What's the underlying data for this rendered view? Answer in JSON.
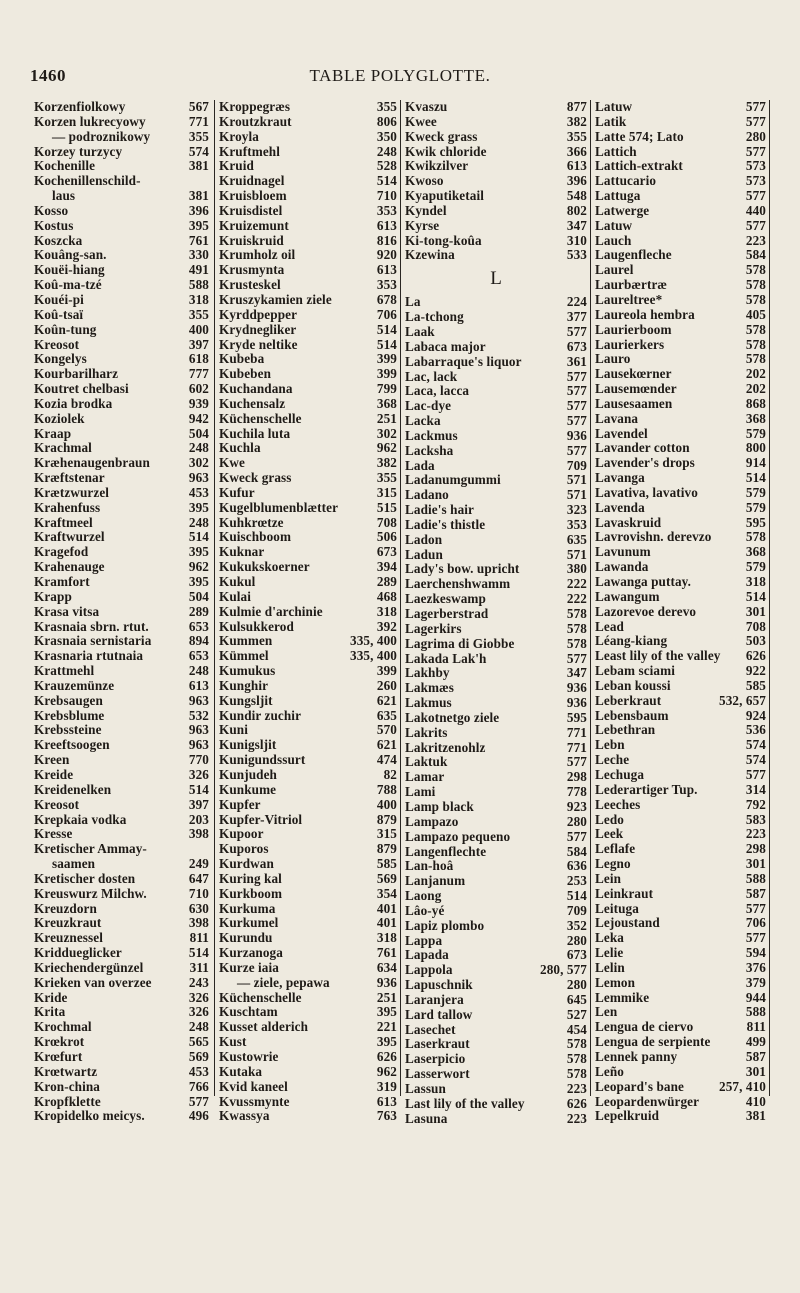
{
  "header": {
    "page_number": "1460",
    "title": "TABLE POLYGLOTTE."
  },
  "columns": [
    [
      {
        "t": "Korzenfiolkowy",
        "n": "567"
      },
      {
        "t": "Korzen lukrecyowy",
        "n": "771"
      },
      {
        "t": "— podroznikowy",
        "n": "355",
        "i": 1
      },
      {
        "t": "Korzey turzycy",
        "n": "574"
      },
      {
        "t": "Kochenille",
        "n": "381"
      },
      {
        "t": "Kochenillenschild-",
        "n": ""
      },
      {
        "t": "laus",
        "n": "381",
        "i": 1
      },
      {
        "t": "Kosso",
        "n": "396"
      },
      {
        "t": "Kostus",
        "n": "395"
      },
      {
        "t": "Koszcka",
        "n": "761"
      },
      {
        "t": "Kouâng-san.",
        "n": "330"
      },
      {
        "t": "Kouëi-hiang",
        "n": "491"
      },
      {
        "t": "Koû-ma-tzé",
        "n": "588"
      },
      {
        "t": "Kouéi-pi",
        "n": "318"
      },
      {
        "t": "Koû-tsaï",
        "n": "355"
      },
      {
        "t": "Koûn-tung",
        "n": "400"
      },
      {
        "t": "Kreosot",
        "n": "397"
      },
      {
        "t": "Kongelys",
        "n": "618"
      },
      {
        "t": "Kourbarilharz",
        "n": "777"
      },
      {
        "t": "Koutret chelbasi",
        "n": "602"
      },
      {
        "t": "Kozia brodka",
        "n": "939"
      },
      {
        "t": "Koziolek",
        "n": "942"
      },
      {
        "t": "Kraap",
        "n": "504"
      },
      {
        "t": "Krachmal",
        "n": "248"
      },
      {
        "t": "Kræhenaugenbraun",
        "n": "302"
      },
      {
        "t": "Kræftstenar",
        "n": "963"
      },
      {
        "t": "Krætzwurzel",
        "n": "453"
      },
      {
        "t": "Krahenfuss",
        "n": "395"
      },
      {
        "t": "Kraftmeel",
        "n": "248"
      },
      {
        "t": "Kraftwurzel",
        "n": "514"
      },
      {
        "t": "Kragefod",
        "n": "395"
      },
      {
        "t": "Krahenauge",
        "n": "962"
      },
      {
        "t": "Kramfort",
        "n": "395"
      },
      {
        "t": "Krapp",
        "n": "504"
      },
      {
        "t": "Krasa vitsa",
        "n": "289"
      },
      {
        "t": "Krasnaia sbrn. rtut.",
        "n": "653"
      },
      {
        "t": "Krasnaia sernistaria",
        "n": "894"
      },
      {
        "t": "Krasnaria rtutnaia",
        "n": "653"
      },
      {
        "t": "Krattmehl",
        "n": "248"
      },
      {
        "t": "Krauzemünze",
        "n": "613"
      },
      {
        "t": "Krebsaugen",
        "n": "963"
      },
      {
        "t": "Krebsblume",
        "n": "532"
      },
      {
        "t": "Krebssteine",
        "n": "963"
      },
      {
        "t": "Kreeftsoogen",
        "n": "963"
      },
      {
        "t": "Kreen",
        "n": "770"
      },
      {
        "t": "Kreide",
        "n": "326"
      },
      {
        "t": "Kreidenelken",
        "n": "514"
      },
      {
        "t": "Kreosot",
        "n": "397"
      },
      {
        "t": "Krepkaia vodka",
        "n": "203"
      },
      {
        "t": "Kresse",
        "n": "398"
      },
      {
        "t": "Kretischer Ammay-",
        "n": ""
      },
      {
        "t": "saamen",
        "n": "249",
        "i": 1
      },
      {
        "t": "Kretischer dosten",
        "n": "647"
      },
      {
        "t": "Kreuswurz Milchw.",
        "n": "710"
      },
      {
        "t": "Kreuzdorn",
        "n": "630"
      },
      {
        "t": "Kreuzkraut",
        "n": "398"
      },
      {
        "t": "Kreuznessel",
        "n": "811"
      },
      {
        "t": "Kriddueglicker",
        "n": "514"
      },
      {
        "t": "Kriechendergünzel",
        "n": "311"
      },
      {
        "t": "Krieken van overzee",
        "n": "243"
      },
      {
        "t": "Kride",
        "n": "326"
      },
      {
        "t": "Krita",
        "n": "326"
      },
      {
        "t": "Krochmal",
        "n": "248"
      },
      {
        "t": "Krœkrot",
        "n": "565"
      },
      {
        "t": "Krœfurt",
        "n": "569"
      },
      {
        "t": "Krœtwartz",
        "n": "453"
      },
      {
        "t": "Kron-china",
        "n": "766"
      },
      {
        "t": "Kropfklette",
        "n": "577"
      },
      {
        "t": "Kropidelko meicys.",
        "n": "496"
      }
    ],
    [
      {
        "t": "Kroppegræs",
        "n": "355"
      },
      {
        "t": "Kroutzkraut",
        "n": "806"
      },
      {
        "t": "Kroyla",
        "n": "350"
      },
      {
        "t": "Kruftmehl",
        "n": "248"
      },
      {
        "t": "Kruid",
        "n": "528"
      },
      {
        "t": "Kruidnagel",
        "n": "514"
      },
      {
        "t": "Kruisbloem",
        "n": "710"
      },
      {
        "t": "Kruisdistel",
        "n": "353"
      },
      {
        "t": "Kruizemunt",
        "n": "613"
      },
      {
        "t": "Kruiskruid",
        "n": "816"
      },
      {
        "t": "Krumholz oil",
        "n": "920"
      },
      {
        "t": "Krusmynta",
        "n": "613"
      },
      {
        "t": "Krusteskel",
        "n": "353"
      },
      {
        "t": "Kruszykamien ziele",
        "n": "678"
      },
      {
        "t": "Kyrddpepper",
        "n": "706"
      },
      {
        "t": "Krydnegliker",
        "n": "514"
      },
      {
        "t": "Kryde neltike",
        "n": "514"
      },
      {
        "t": "Kubeba",
        "n": "399"
      },
      {
        "t": "Kubeben",
        "n": "399"
      },
      {
        "t": "Kuchandana",
        "n": "799"
      },
      {
        "t": "Kuchensalz",
        "n": "368"
      },
      {
        "t": "Küchenschelle",
        "n": "251"
      },
      {
        "t": "Kuchila luta",
        "n": "302"
      },
      {
        "t": "Kuchla",
        "n": "962"
      },
      {
        "t": "Kwe",
        "n": "382"
      },
      {
        "t": "Kweck grass",
        "n": "355"
      },
      {
        "t": "Kufur",
        "n": "315"
      },
      {
        "t": "Kugelblumenblætter",
        "n": "515"
      },
      {
        "t": "Kuhkrœtze",
        "n": "708"
      },
      {
        "t": "Kuischboom",
        "n": "506"
      },
      {
        "t": "Kuknar",
        "n": "673"
      },
      {
        "t": "Kukukskoerner",
        "n": "394"
      },
      {
        "t": "Kukul",
        "n": "289"
      },
      {
        "t": "Kulai",
        "n": "468"
      },
      {
        "t": "Kulmie d'archinie",
        "n": "318"
      },
      {
        "t": "Kulsukkerod",
        "n": "392"
      },
      {
        "t": "Kummen",
        "n": "335, 400"
      },
      {
        "t": "Kümmel",
        "n": "335, 400"
      },
      {
        "t": "Kumukus",
        "n": "399"
      },
      {
        "t": "Kunghir",
        "n": "260"
      },
      {
        "t": "Kungsljit",
        "n": "621"
      },
      {
        "t": "Kundir zuchir",
        "n": "635"
      },
      {
        "t": "Kuni",
        "n": "570"
      },
      {
        "t": "Kunigsljit",
        "n": "621"
      },
      {
        "t": "Kunigundssurt",
        "n": "474"
      },
      {
        "t": "Kunjudeh",
        "n": "82"
      },
      {
        "t": "Kunkume",
        "n": "788"
      },
      {
        "t": "Kupfer",
        "n": "400"
      },
      {
        "t": "Kupfer-Vitriol",
        "n": "879"
      },
      {
        "t": "Kupoor",
        "n": "315"
      },
      {
        "t": "Kuporos",
        "n": "879"
      },
      {
        "t": "Kurdwan",
        "n": "585"
      },
      {
        "t": "Kuring kal",
        "n": "569"
      },
      {
        "t": "Kurkboom",
        "n": "354"
      },
      {
        "t": "Kurkuma",
        "n": "401"
      },
      {
        "t": "Kurkumel",
        "n": "401"
      },
      {
        "t": "Kurundu",
        "n": "318"
      },
      {
        "t": "Kurzanoga",
        "n": "761"
      },
      {
        "t": "Kurze iaia",
        "n": "634"
      },
      {
        "t": "— ziele, pepawa",
        "n": "936",
        "i": 1
      },
      {
        "t": "Küchenschelle",
        "n": "251"
      },
      {
        "t": "Kuschtam",
        "n": "395"
      },
      {
        "t": "Kusset alderich",
        "n": "221"
      },
      {
        "t": "Kust",
        "n": "395"
      },
      {
        "t": "Kustowrie",
        "n": "626"
      },
      {
        "t": "Kutaka",
        "n": "962"
      },
      {
        "t": "Kvid kaneel",
        "n": "319"
      },
      {
        "t": "Kvussmynte",
        "n": "613"
      },
      {
        "t": "Kwassya",
        "n": "763"
      }
    ],
    [
      {
        "t": "Kvaszu",
        "n": "877"
      },
      {
        "t": "Kwee",
        "n": "382"
      },
      {
        "t": "Kweck grass",
        "n": "355"
      },
      {
        "t": "Kwik chloride",
        "n": "366"
      },
      {
        "t": "Kwikzilver",
        "n": "613"
      },
      {
        "t": "Kwoso",
        "n": "396"
      },
      {
        "t": "Kyaputiketail",
        "n": "548"
      },
      {
        "t": "Kyndel",
        "n": "802"
      },
      {
        "t": "Kyrse",
        "n": "347"
      },
      {
        "t": "Ki-tong-koûa",
        "n": "310"
      },
      {
        "t": "Kzewina",
        "n": "533"
      },
      {
        "h": "L"
      },
      {
        "t": "La",
        "n": "224"
      },
      {
        "t": "La-tchong",
        "n": "377"
      },
      {
        "t": "Laak",
        "n": "577"
      },
      {
        "t": "Labaca major",
        "n": "673"
      },
      {
        "t": "Labarraque's liquor",
        "n": "361"
      },
      {
        "t": "Lac, lack",
        "n": "577"
      },
      {
        "t": "Laca, lacca",
        "n": "577"
      },
      {
        "t": "Lac-dye",
        "n": "577"
      },
      {
        "t": "Lacka",
        "n": "577"
      },
      {
        "t": "Lackmus",
        "n": "936"
      },
      {
        "t": "Lacksha",
        "n": "577"
      },
      {
        "t": "Lada",
        "n": "709"
      },
      {
        "t": "Ladanumgummi",
        "n": "571"
      },
      {
        "t": "Ladano",
        "n": "571"
      },
      {
        "t": "Ladie's hair",
        "n": "323"
      },
      {
        "t": "Ladie's thistle",
        "n": "353"
      },
      {
        "t": "Ladon",
        "n": "635"
      },
      {
        "t": "Ladun",
        "n": "571"
      },
      {
        "t": "Lady's bow. upricht",
        "n": "380"
      },
      {
        "t": "Laerchenshwamm",
        "n": "222"
      },
      {
        "t": "Laezkeswamp",
        "n": "222"
      },
      {
        "t": "Lagerberstrad",
        "n": "578"
      },
      {
        "t": "Lagerkirs",
        "n": "578"
      },
      {
        "t": "Lagrima di Giobbe",
        "n": "578"
      },
      {
        "t": "Lakada Lak'h",
        "n": "577"
      },
      {
        "t": "Lakhby",
        "n": "347"
      },
      {
        "t": "Lakmæs",
        "n": "936"
      },
      {
        "t": "Lakmus",
        "n": "936"
      },
      {
        "t": "Lakotnetgo ziele",
        "n": "595"
      },
      {
        "t": "Lakrits",
        "n": "771"
      },
      {
        "t": "Lakritzenohlz",
        "n": "771"
      },
      {
        "t": "Laktuk",
        "n": "577"
      },
      {
        "t": "Lamar",
        "n": "298"
      },
      {
        "t": "Lami",
        "n": "778"
      },
      {
        "t": "Lamp black",
        "n": "923"
      },
      {
        "t": "Lampazo",
        "n": "280"
      },
      {
        "t": "Lampazo pequeno",
        "n": "577"
      },
      {
        "t": "Langenflechte",
        "n": "584"
      },
      {
        "t": "Lan-hoâ",
        "n": "636"
      },
      {
        "t": "Lanjanum",
        "n": "253"
      },
      {
        "t": "Laong",
        "n": "514"
      },
      {
        "t": "Lâo-yé",
        "n": "709"
      },
      {
        "t": "Lapiz plombo",
        "n": "352"
      },
      {
        "t": "Lappa",
        "n": "280"
      },
      {
        "t": "Lapada",
        "n": "673"
      },
      {
        "t": "Lappola",
        "n": "280, 577"
      },
      {
        "t": "Lapuschnik",
        "n": "280"
      },
      {
        "t": "Laranjera",
        "n": "645"
      },
      {
        "t": "Lard tallow",
        "n": "527"
      },
      {
        "t": "Lasechet",
        "n": "454"
      },
      {
        "t": "Laserkraut",
        "n": "578"
      },
      {
        "t": "Laserpicio",
        "n": "578"
      },
      {
        "t": "Lasserwort",
        "n": "578"
      },
      {
        "t": "Lassun",
        "n": "223"
      },
      {
        "t": "Last lily of the valley",
        "n": "626"
      },
      {
        "t": "Lasuna",
        "n": "223"
      }
    ],
    [
      {
        "t": "Latuw",
        "n": "577"
      },
      {
        "t": "Latik",
        "n": "577"
      },
      {
        "t": "Latte 574; Lato",
        "n": "280"
      },
      {
        "t": "Lattich",
        "n": "577"
      },
      {
        "t": "Lattich-extrakt",
        "n": "573"
      },
      {
        "t": "Lattucario",
        "n": "573"
      },
      {
        "t": "Lattuga",
        "n": "577"
      },
      {
        "t": "Latwerge",
        "n": "440"
      },
      {
        "t": "Latuw",
        "n": "577"
      },
      {
        "t": "Lauch",
        "n": "223"
      },
      {
        "t": "Laugenfleche",
        "n": "584"
      },
      {
        "t": "Laurel",
        "n": "578"
      },
      {
        "t": "Laurbærtræ",
        "n": "578"
      },
      {
        "t": "Laureltree*",
        "n": "578"
      },
      {
        "t": "Laureola hembra",
        "n": "405"
      },
      {
        "t": "Laurierboom",
        "n": "578"
      },
      {
        "t": "Laurierkers",
        "n": "578"
      },
      {
        "t": "Lauro",
        "n": "578"
      },
      {
        "t": "Lausekœrner",
        "n": "202"
      },
      {
        "t": "Lausemœnder",
        "n": "202"
      },
      {
        "t": "Lausesaamen",
        "n": "868"
      },
      {
        "t": "Lavana",
        "n": "368"
      },
      {
        "t": "Lavendel",
        "n": "579"
      },
      {
        "t": "Lavander cotton",
        "n": "800"
      },
      {
        "t": "Lavender's drops",
        "n": "914"
      },
      {
        "t": "Lavanga",
        "n": "514"
      },
      {
        "t": "Lavativa, lavativo",
        "n": "579"
      },
      {
        "t": "Lavenda",
        "n": "579"
      },
      {
        "t": "Lavaskruid",
        "n": "595"
      },
      {
        "t": "Lavrovishn. derevzo",
        "n": "578"
      },
      {
        "t": "Lavunum",
        "n": "368"
      },
      {
        "t": "Lawanda",
        "n": "579"
      },
      {
        "t": "Lawanga puttay.",
        "n": "318"
      },
      {
        "t": "Lawangum",
        "n": "514"
      },
      {
        "t": "Lazorevoe derevo",
        "n": "301"
      },
      {
        "t": "Lead",
        "n": "708"
      },
      {
        "t": "Léang-kiang",
        "n": "503"
      },
      {
        "t": "Least lily of the valley",
        "n": "626"
      },
      {
        "t": "Lebam sciami",
        "n": "922"
      },
      {
        "t": "Leban koussi",
        "n": "585"
      },
      {
        "t": "Leberkraut",
        "n": "532, 657"
      },
      {
        "t": "Lebensbaum",
        "n": "924"
      },
      {
        "t": "Lebethran",
        "n": "536"
      },
      {
        "t": "Lebn",
        "n": "574"
      },
      {
        "t": "Leche",
        "n": "574"
      },
      {
        "t": "Lechuga",
        "n": "577"
      },
      {
        "t": "Lederartiger Tup.",
        "n": "314"
      },
      {
        "t": "Leeches",
        "n": "792"
      },
      {
        "t": "Ledo",
        "n": "583"
      },
      {
        "t": "Leek",
        "n": "223"
      },
      {
        "t": "Leflafe",
        "n": "298"
      },
      {
        "t": "Legno",
        "n": "301"
      },
      {
        "t": "Lein",
        "n": "588"
      },
      {
        "t": "Leinkraut",
        "n": "587"
      },
      {
        "t": "Leituga",
        "n": "577"
      },
      {
        "t": "Lejoustand",
        "n": "706"
      },
      {
        "t": "Leka",
        "n": "577"
      },
      {
        "t": "Lelie",
        "n": "594"
      },
      {
        "t": "Lelin",
        "n": "376"
      },
      {
        "t": "Lemon",
        "n": "379"
      },
      {
        "t": "Lemmike",
        "n": "944"
      },
      {
        "t": "Len",
        "n": "588"
      },
      {
        "t": "Lengua de ciervo",
        "n": "811"
      },
      {
        "t": "Lengua de serpiente",
        "n": "499"
      },
      {
        "t": "Lennek panny",
        "n": "587"
      },
      {
        "t": "Leño",
        "n": "301"
      },
      {
        "t": "Leopard's bane",
        "n": "257, 410"
      },
      {
        "t": "Leopardenwürger",
        "n": "410"
      },
      {
        "t": "Lepelkruid",
        "n": "381"
      }
    ]
  ]
}
